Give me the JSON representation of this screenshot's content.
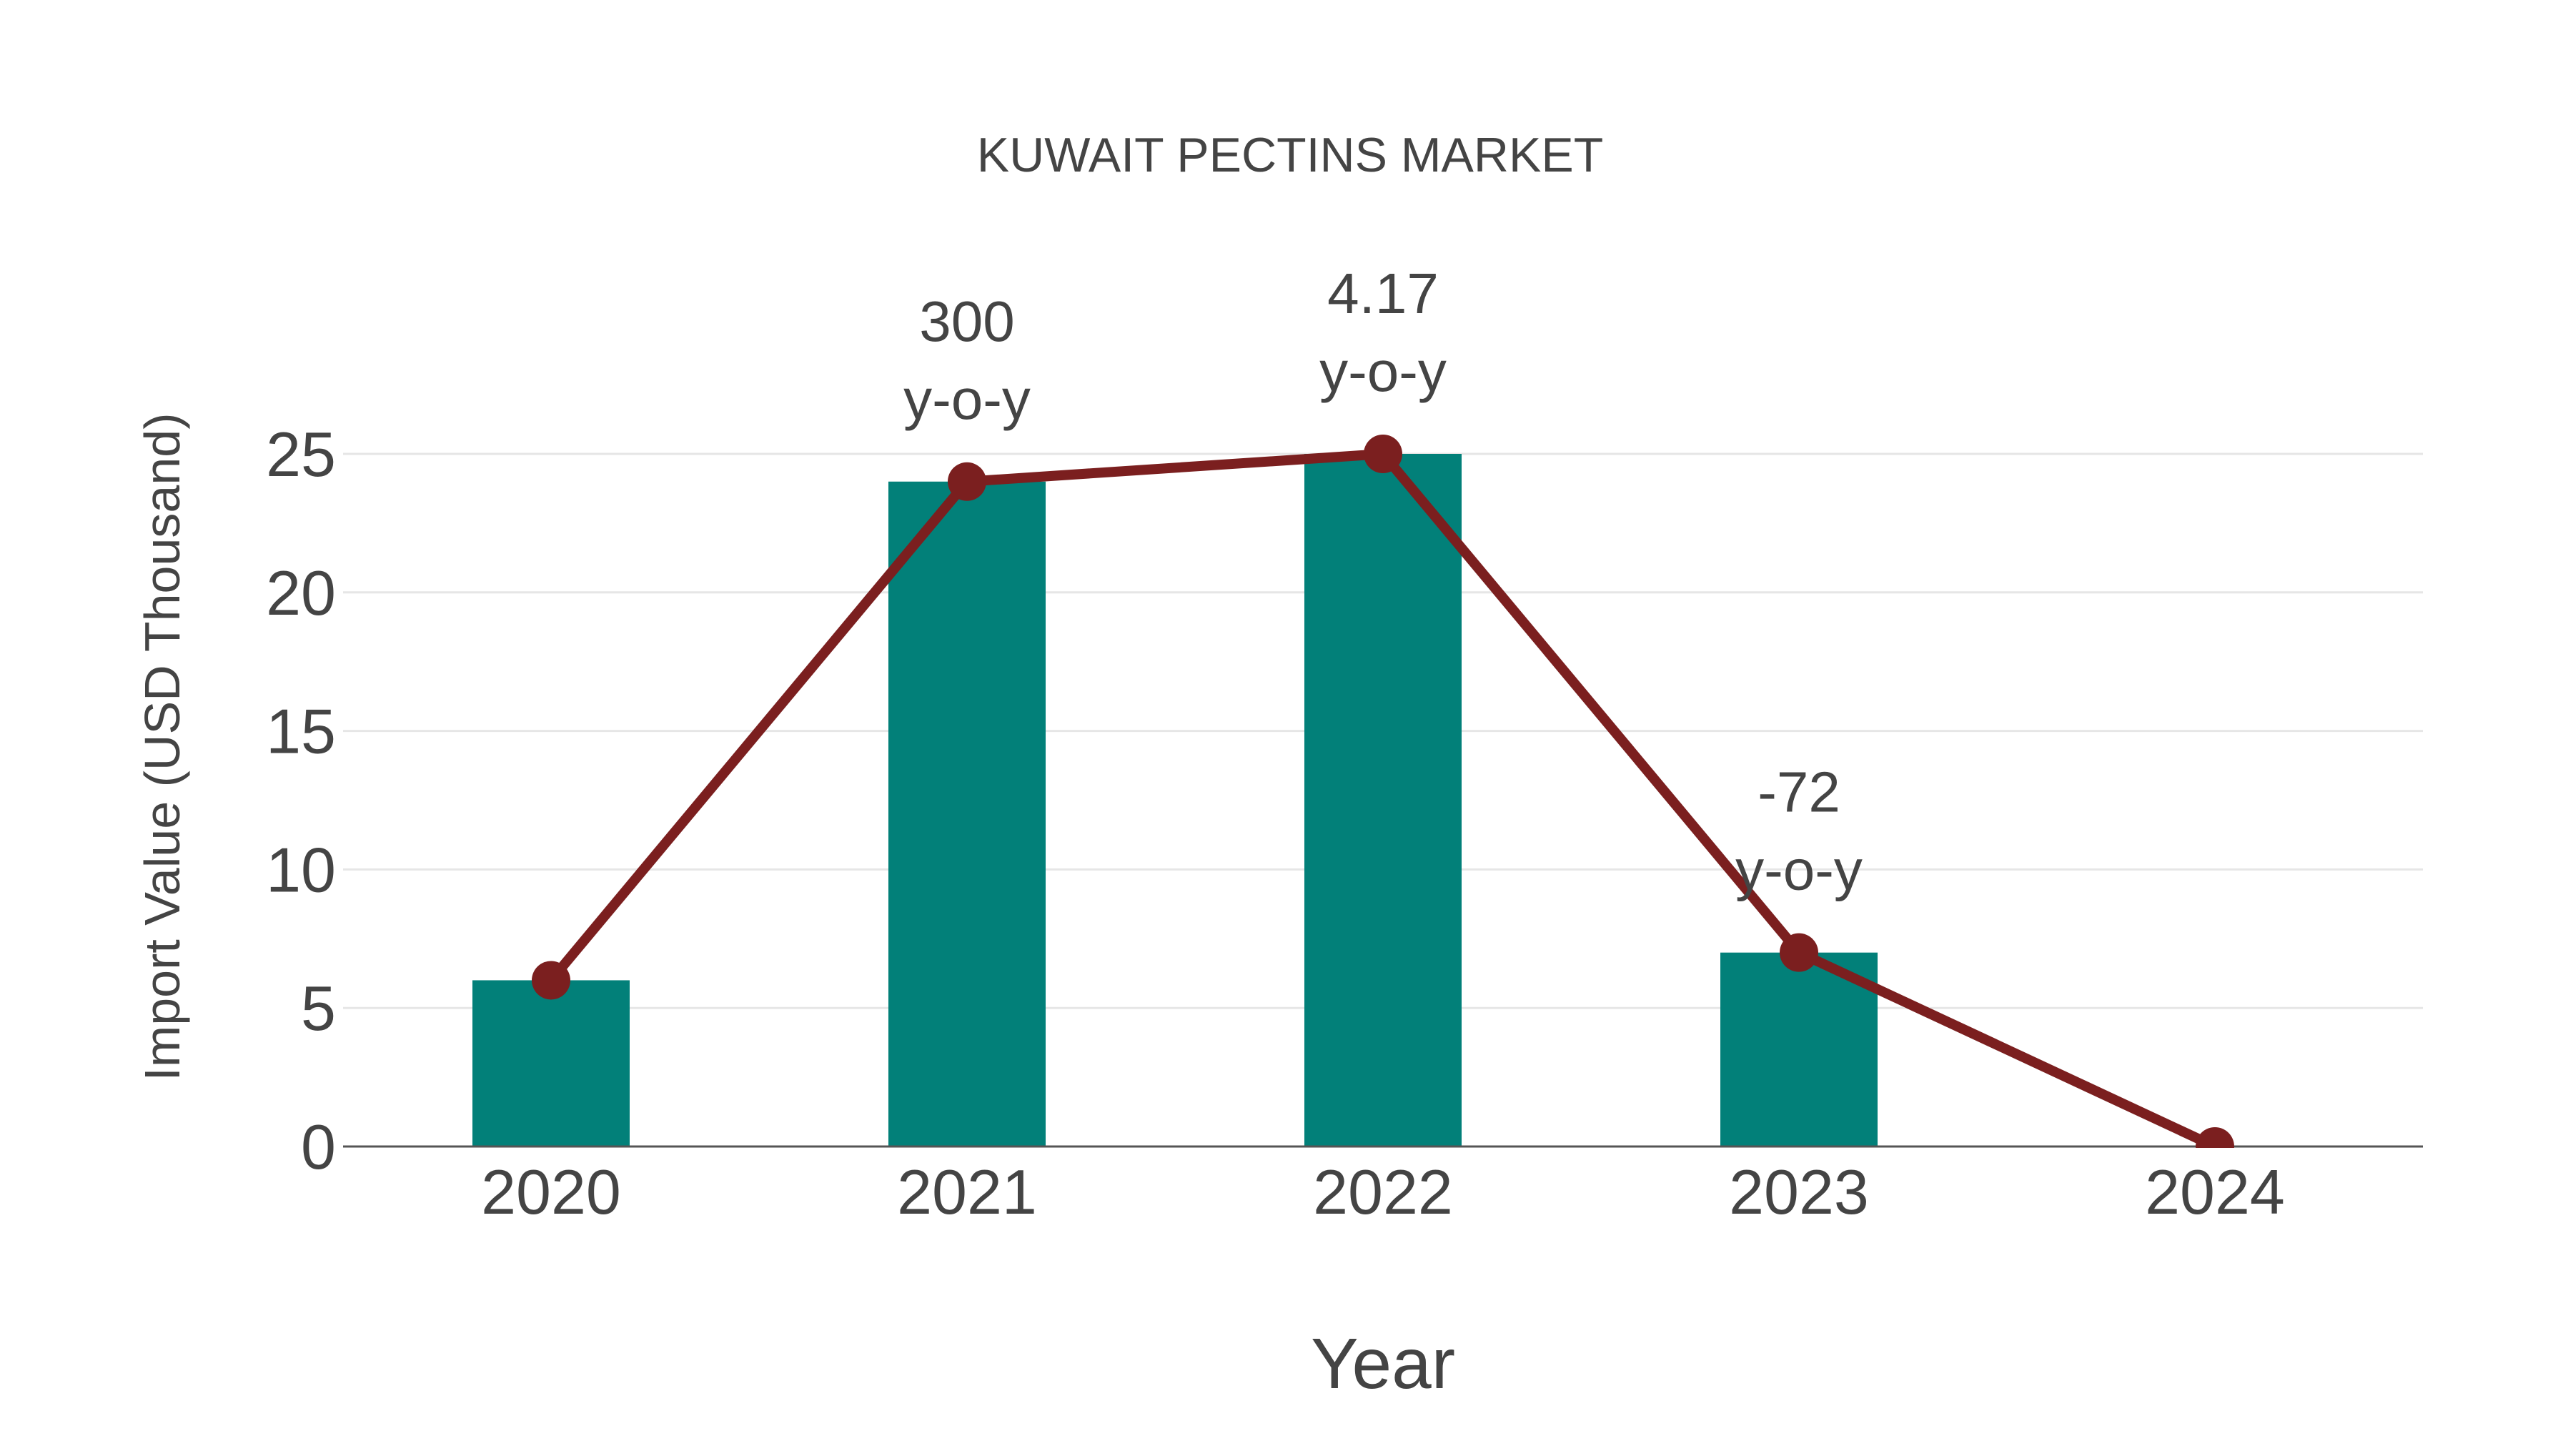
{
  "chart_data": {
    "type": "bar+line",
    "title": "KUWAIT PECTINS MARKET",
    "xlabel": "Year",
    "ylabel": "Import Value (USD Thousand)",
    "categories": [
      "2020",
      "2021",
      "2022",
      "2023",
      "2024"
    ],
    "series": [
      {
        "name": "Import Value (bar)",
        "type": "bar",
        "color": "#028079",
        "values": [
          6,
          24,
          25,
          7,
          0
        ]
      },
      {
        "name": "Import Value (line)",
        "type": "line",
        "color": "#7b1f1f",
        "values": [
          6,
          24,
          25,
          7,
          0
        ]
      }
    ],
    "annotations": [
      {
        "category": "2021",
        "value": "300",
        "suffix": "y-o-y"
      },
      {
        "category": "2022",
        "value": "4.17",
        "suffix": "y-o-y"
      },
      {
        "category": "2023",
        "value": "-72",
        "suffix": "y-o-y"
      }
    ],
    "yticks": [
      0,
      5,
      10,
      15,
      20,
      25
    ],
    "ylim": [
      0,
      25
    ],
    "grid": true,
    "legend": "none"
  },
  "colors": {
    "bar": "#028079",
    "line": "#7b1f1f",
    "text": "#444444",
    "grid": "#e6e6e6",
    "axis": "#555555"
  }
}
